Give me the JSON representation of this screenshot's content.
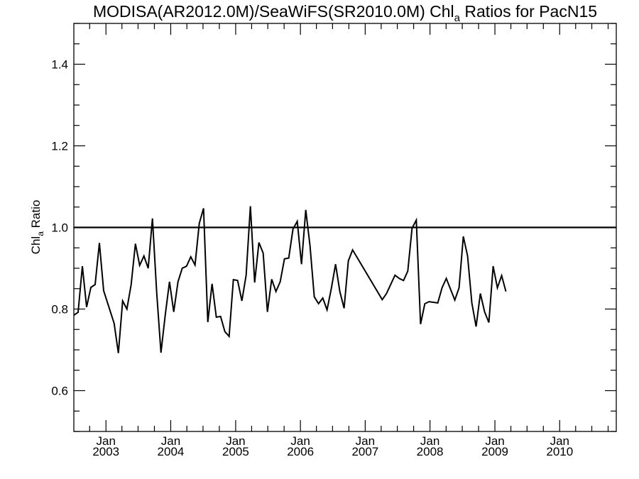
{
  "chart_data": {
    "type": "line",
    "title": {
      "prefix": "MODISA(AR2012.0M)/SeaWiFS(SR2010.0M)  Chl",
      "subscript": "a",
      "suffix": " Ratios for PacN15"
    },
    "ylabel": {
      "prefix": "Chl",
      "subscript": "a",
      "suffix": " Ratio"
    },
    "xlabel": "",
    "xlim": [
      "2002-07-04",
      "2010-11-16"
    ],
    "ylim": [
      0.5,
      1.5
    ],
    "y_ticks": [
      {
        "value": 0.6,
        "label": "0.6"
      },
      {
        "value": 0.8,
        "label": "0.8"
      },
      {
        "value": 1.0,
        "label": "1.0"
      },
      {
        "value": 1.2,
        "label": "1.2"
      },
      {
        "value": 1.4,
        "label": "1.4"
      }
    ],
    "x_ticks": [
      {
        "value": "2003-01-01",
        "month": "Jan",
        "year": "2003"
      },
      {
        "value": "2004-01-01",
        "month": "Jan",
        "year": "2004"
      },
      {
        "value": "2005-01-01",
        "month": "Jan",
        "year": "2005"
      },
      {
        "value": "2006-01-01",
        "month": "Jan",
        "year": "2006"
      },
      {
        "value": "2007-01-01",
        "month": "Jan",
        "year": "2007"
      },
      {
        "value": "2008-01-01",
        "month": "Jan",
        "year": "2008"
      },
      {
        "value": "2009-01-01",
        "month": "Jan",
        "year": "2009"
      },
      {
        "value": "2010-01-01",
        "month": "Jan",
        "year": "2010"
      }
    ],
    "reference_line": 1.0,
    "grid": false,
    "series": [
      {
        "color": "#000000",
        "points": [
          [
            "2002-07-04",
            0.785
          ],
          [
            "2002-07-28",
            0.792
          ],
          [
            "2002-08-21",
            0.905
          ],
          [
            "2002-09-14",
            0.805
          ],
          [
            "2002-10-08",
            0.853
          ],
          [
            "2002-11-01",
            0.86
          ],
          [
            "2002-11-25",
            0.962
          ],
          [
            "2002-12-19",
            0.845
          ],
          [
            "2003-02-16",
            0.765
          ],
          [
            "2003-03-12",
            0.692
          ],
          [
            "2003-04-05",
            0.82
          ],
          [
            "2003-04-29",
            0.8
          ],
          [
            "2003-05-23",
            0.86
          ],
          [
            "2003-06-16",
            0.96
          ],
          [
            "2003-07-10",
            0.907
          ],
          [
            "2003-08-03",
            0.93
          ],
          [
            "2003-08-27",
            0.9
          ],
          [
            "2003-09-20",
            1.022
          ],
          [
            "2003-10-14",
            0.84
          ],
          [
            "2003-11-07",
            0.693
          ],
          [
            "2003-12-01",
            0.785
          ],
          [
            "2003-12-25",
            0.867
          ],
          [
            "2004-01-18",
            0.793
          ],
          [
            "2004-02-11",
            0.867
          ],
          [
            "2004-03-06",
            0.9
          ],
          [
            "2004-03-30",
            0.905
          ],
          [
            "2004-04-23",
            0.928
          ],
          [
            "2004-05-17",
            0.908
          ],
          [
            "2004-06-10",
            1.01
          ],
          [
            "2004-07-04",
            1.047
          ],
          [
            "2004-07-28",
            0.768
          ],
          [
            "2004-08-21",
            0.862
          ],
          [
            "2004-09-14",
            0.78
          ],
          [
            "2004-10-08",
            0.782
          ],
          [
            "2004-11-01",
            0.745
          ],
          [
            "2004-11-25",
            0.733
          ],
          [
            "2004-12-19",
            0.872
          ],
          [
            "2005-01-12",
            0.87
          ],
          [
            "2005-02-05",
            0.82
          ],
          [
            "2005-03-01",
            0.883
          ],
          [
            "2005-03-25",
            1.052
          ],
          [
            "2005-04-18",
            0.865
          ],
          [
            "2005-05-12",
            0.963
          ],
          [
            "2005-06-05",
            0.937
          ],
          [
            "2005-06-29",
            0.793
          ],
          [
            "2005-07-23",
            0.873
          ],
          [
            "2005-08-16",
            0.843
          ],
          [
            "2005-09-09",
            0.867
          ],
          [
            "2005-10-03",
            0.923
          ],
          [
            "2005-10-27",
            0.925
          ],
          [
            "2005-11-20",
            0.996
          ],
          [
            "2005-12-14",
            1.015
          ],
          [
            "2006-01-07",
            0.91
          ],
          [
            "2006-01-31",
            1.043
          ],
          [
            "2006-02-24",
            0.955
          ],
          [
            "2006-03-20",
            0.83
          ],
          [
            "2006-04-13",
            0.813
          ],
          [
            "2006-05-07",
            0.827
          ],
          [
            "2006-05-31",
            0.798
          ],
          [
            "2006-06-24",
            0.85
          ],
          [
            "2006-07-18",
            0.91
          ],
          [
            "2006-08-11",
            0.843
          ],
          [
            "2006-09-04",
            0.802
          ],
          [
            "2006-09-28",
            0.918
          ],
          [
            "2006-10-22",
            0.945
          ],
          [
            "2007-04-07",
            0.823
          ],
          [
            "2007-05-01",
            0.838
          ],
          [
            "2007-06-18",
            0.883
          ],
          [
            "2007-07-12",
            0.875
          ],
          [
            "2007-08-05",
            0.87
          ],
          [
            "2007-08-29",
            0.893
          ],
          [
            "2007-09-22",
            0.998
          ],
          [
            "2007-10-16",
            1.018
          ],
          [
            "2007-11-09",
            0.763
          ],
          [
            "2007-12-03",
            0.813
          ],
          [
            "2007-12-27",
            0.818
          ],
          [
            "2008-02-14",
            0.815
          ],
          [
            "2008-03-09",
            0.852
          ],
          [
            "2008-04-02",
            0.875
          ],
          [
            "2008-05-20",
            0.822
          ],
          [
            "2008-06-13",
            0.852
          ],
          [
            "2008-07-07",
            0.978
          ],
          [
            "2008-07-31",
            0.93
          ],
          [
            "2008-08-24",
            0.815
          ],
          [
            "2008-09-17",
            0.757
          ],
          [
            "2008-10-11",
            0.838
          ],
          [
            "2008-11-04",
            0.793
          ],
          [
            "2008-11-28",
            0.767
          ],
          [
            "2008-12-22",
            0.905
          ],
          [
            "2009-01-15",
            0.852
          ],
          [
            "2009-02-08",
            0.882
          ],
          [
            "2009-03-04",
            0.843
          ]
        ]
      }
    ]
  }
}
